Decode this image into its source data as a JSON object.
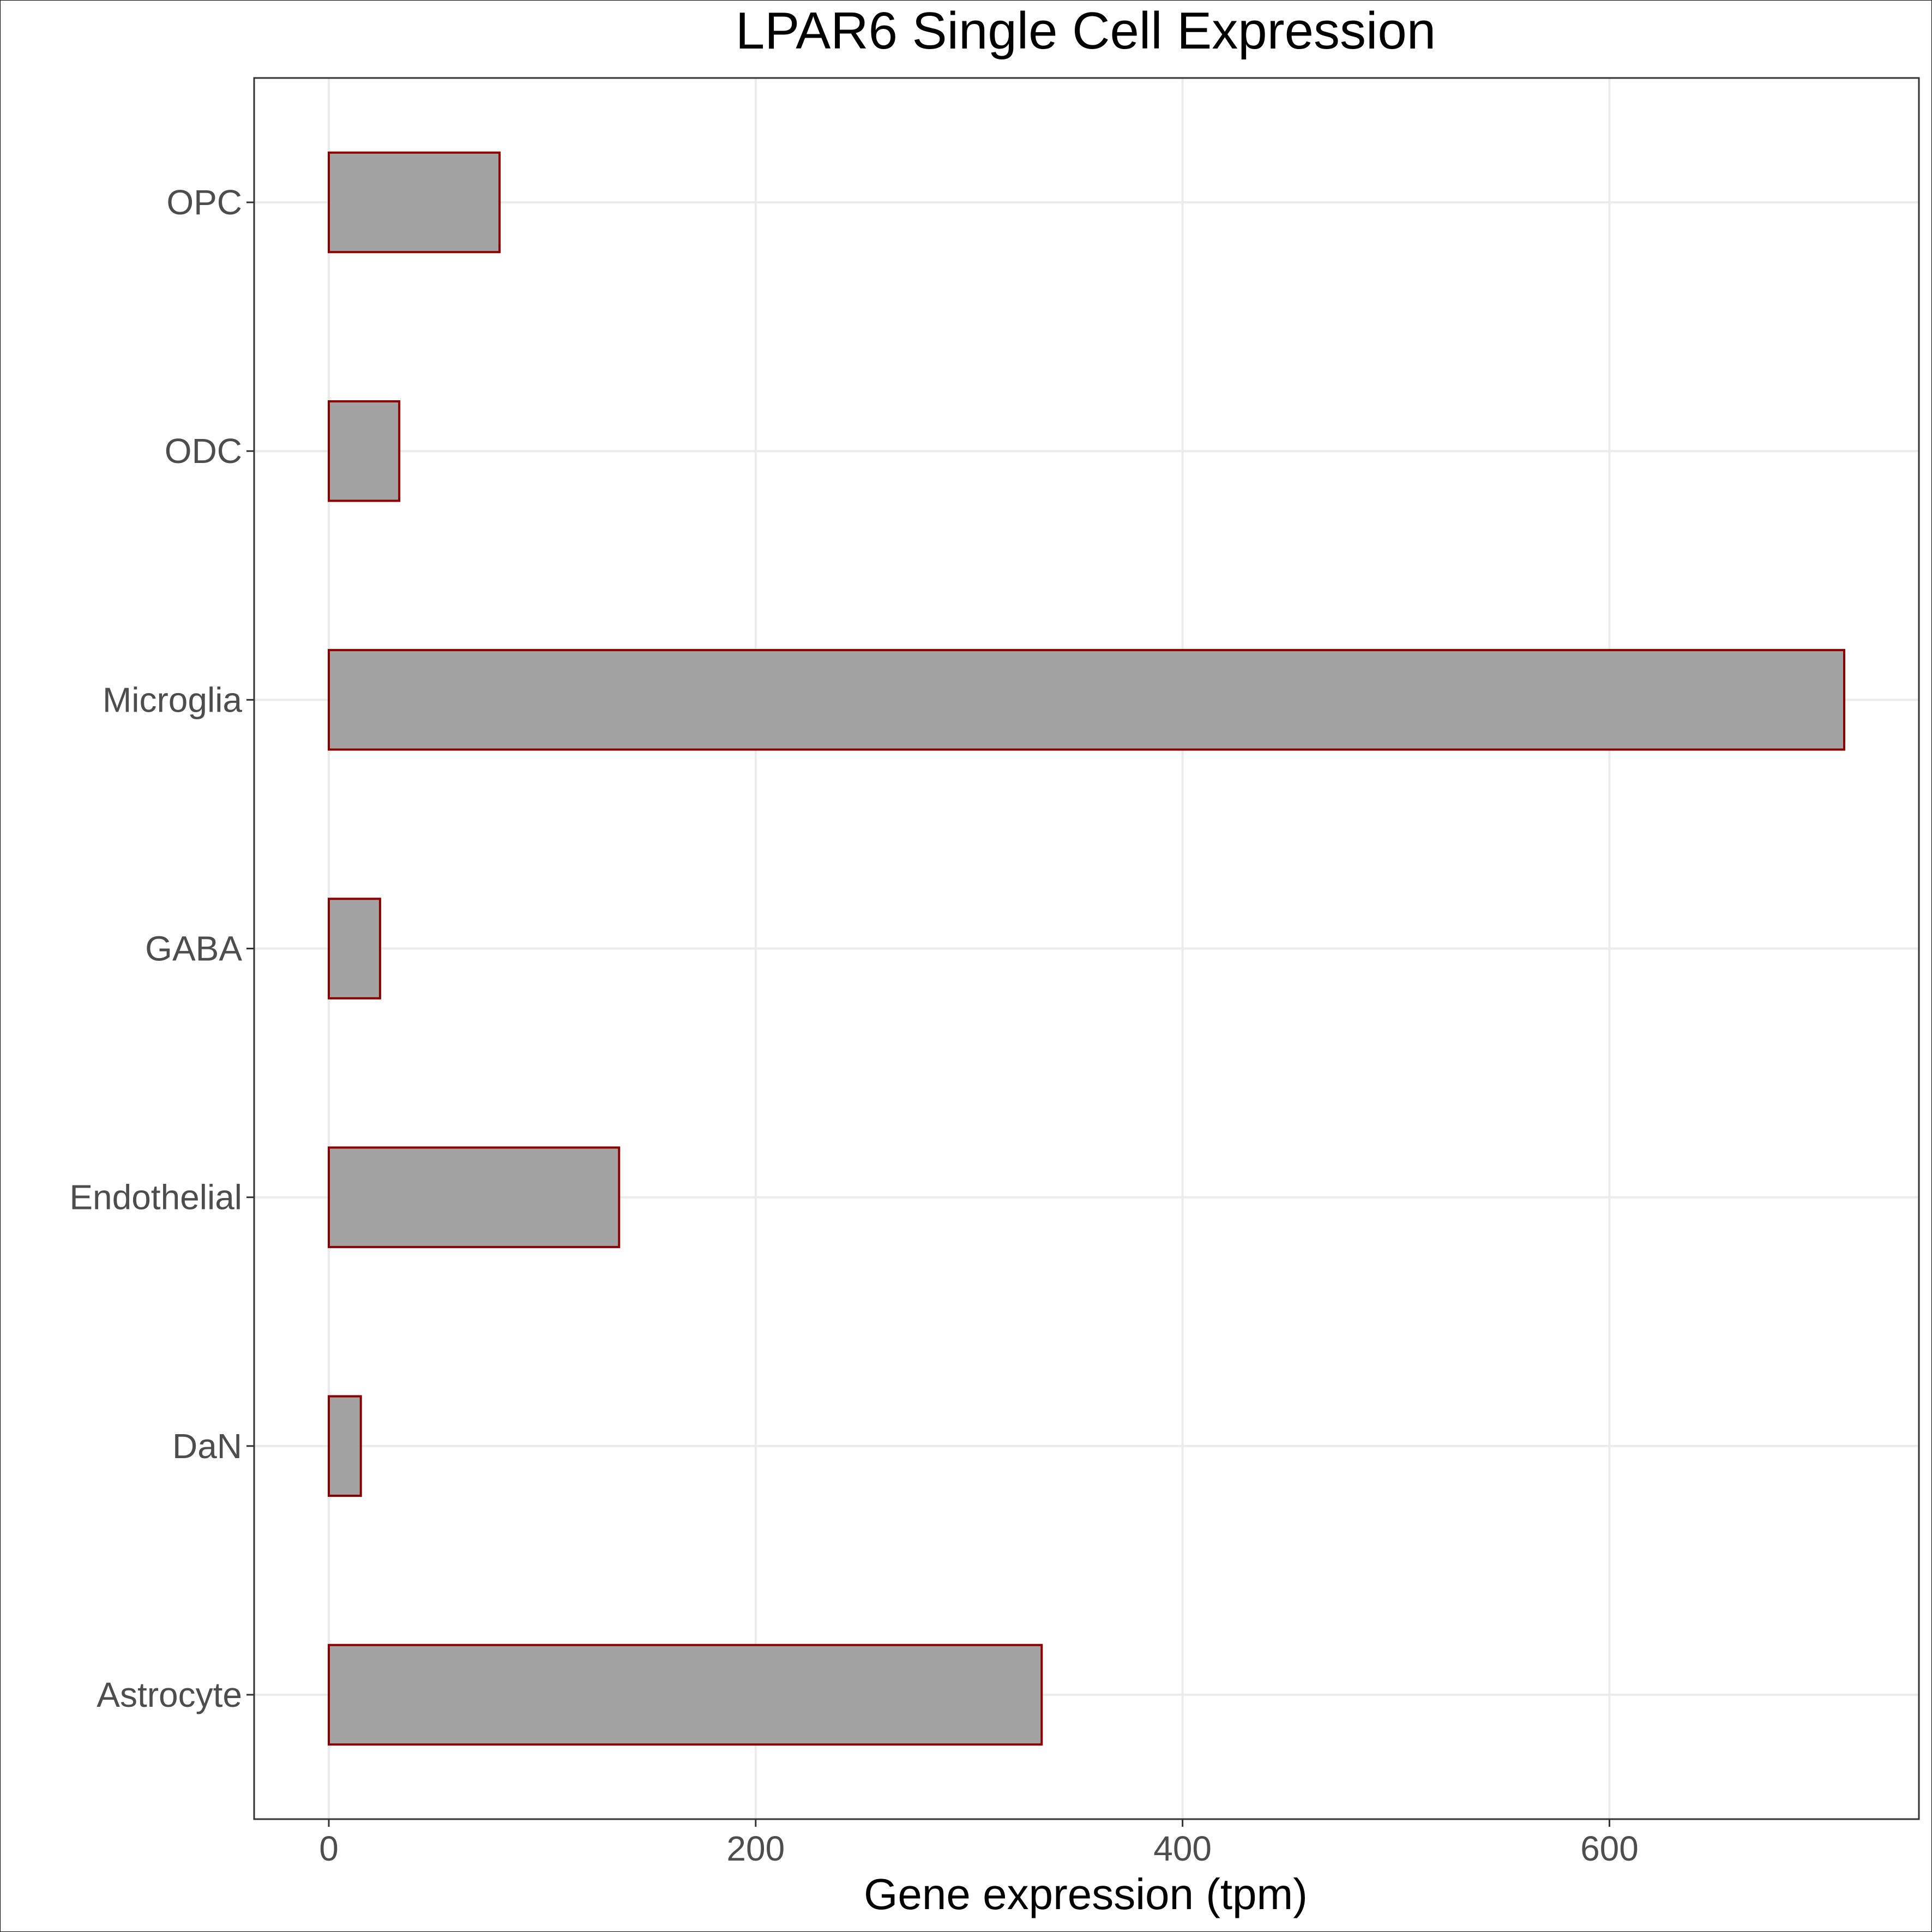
{
  "chart_data": {
    "type": "bar",
    "orientation": "horizontal",
    "title": "LPAR6 Single Cell Expression",
    "xlabel": "Gene expression (tpm)",
    "ylabel": "",
    "categories": [
      "Astrocyte",
      "DaN",
      "Endothelial",
      "GABA",
      "Microglia",
      "ODC",
      "OPC"
    ],
    "values": [
      334,
      15,
      136,
      24,
      710,
      33,
      80
    ],
    "xlim": [
      -35,
      745
    ],
    "xticks": [
      0,
      200,
      400,
      600
    ],
    "xtick_labels": [
      "0",
      "200",
      "400",
      "600"
    ],
    "grid": true,
    "legend": "none"
  },
  "colors": {
    "bar_fill": "#a3a3a3",
    "bar_outline": "#8b0000",
    "grid": "#ebebeb",
    "panel_border": "#333333",
    "tick_label": "#4d4d4d",
    "title": "#000000"
  }
}
